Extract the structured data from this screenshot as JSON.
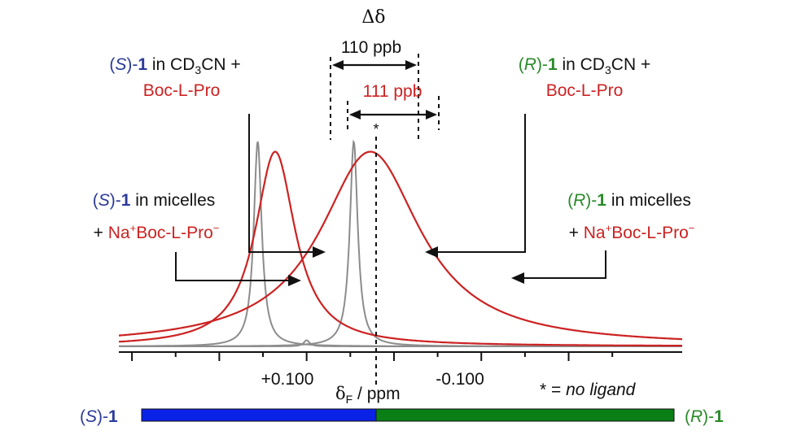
{
  "chart_data": {
    "type": "line",
    "title": "",
    "xlabel": {
      "symbol": "δ",
      "sub": "F",
      "rest": " / ppm"
    },
    "ylabel": "",
    "x_reversed": true,
    "xlim": [
      0.215,
      -0.43
    ],
    "ticks": {
      "labeled": [
        0.1,
        -0.1
      ],
      "labels": [
        "+0.100",
        "-0.100"
      ],
      "major": [
        0.2,
        0.1,
        0.0,
        -0.1,
        -0.2,
        -0.3
      ],
      "minor": [
        0.15,
        0.05,
        -0.05,
        -0.15,
        -0.25,
        -0.35
      ]
    },
    "series": [
      {
        "color": "#8c8c8c",
        "shape": "lorentz",
        "center": 0.056,
        "hwhm": 0.0055,
        "height": 1.0
      },
      {
        "color": "#8c8c8c",
        "shape": "lorentz",
        "center": -0.054,
        "hwhm": 0.0055,
        "height": 1.0
      },
      {
        "color": "#8c8c8c",
        "shape": "lorentz",
        "center": 0.0,
        "hwhm": 0.004,
        "height": 0.03
      },
      {
        "color": "#cc2222",
        "shape": "lorentz",
        "center": 0.036,
        "hwhm": 0.028,
        "height": 0.95
      },
      {
        "color": "#cc2222",
        "shape": "lorentz",
        "center": -0.073,
        "hwhm": 0.07,
        "height": 0.95
      }
    ],
    "delta_symbol": "Δδ",
    "delta_gray": {
      "value": "110 ppb",
      "from": 0.056,
      "to": -0.054,
      "color": "#111111"
    },
    "delta_red": {
      "value": "111 ppb",
      "from": 0.036,
      "to": -0.073,
      "color": "#cc2222"
    },
    "star_marker": "*",
    "no_ligand_note": {
      "star": "*",
      "eq": " = ",
      "text": "no ligand"
    }
  },
  "annotations": {
    "s_cd3cn": {
      "open": "(",
      "S": "S",
      "close": ")-",
      "num": "1",
      "mid": " in CD",
      "sub": "3",
      "rest": "CN +",
      "line2": "Boc-L-Pro"
    },
    "r_cd3cn": {
      "open": "(",
      "R": "R",
      "close": ")-",
      "num": "1",
      "mid": " in CD",
      "sub": "3",
      "rest": "CN +",
      "line2": "Boc-L-Pro"
    },
    "s_micelles": {
      "open": "(",
      "S": "S",
      "close": ")-",
      "num": "1",
      "rest": " in micelles",
      "plus": "+ ",
      "na": "Na",
      "sup_plus": "+",
      "boc": "Boc-L-Pro",
      "sup_minus": "−"
    },
    "r_micelles": {
      "open": "(",
      "R": "R",
      "close": ")-",
      "num": "1",
      "rest": " in micelles",
      "plus": "+ ",
      "na": "Na",
      "sup_plus": "+",
      "boc": "Boc-L-Pro",
      "sup_minus": "−"
    }
  },
  "bottom_bar": {
    "left_label": {
      "open": "(",
      "italic": "S",
      "close": ")-",
      "num": "1"
    },
    "right_label": {
      "open": "(",
      "italic": "R",
      "close": ")-",
      "num": "1"
    },
    "left_color": "#0a22e6",
    "right_color": "#0a7f16"
  },
  "colors": {
    "blue": "#2b3a9a",
    "green": "#2a8a2a",
    "red": "#cc2222",
    "gray": "#8c8c8c",
    "axis": "#111111"
  }
}
